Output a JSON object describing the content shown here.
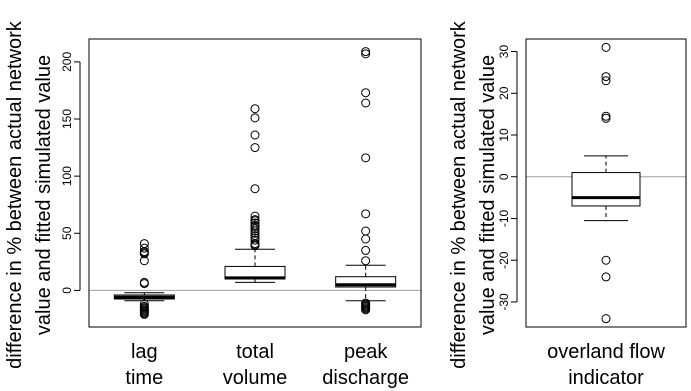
{
  "charts": {
    "chart_data": [
      {
        "type": "box",
        "ylabel_line1": "difference in % between actual network",
        "ylabel_line2": "value and fitted simulated value",
        "ylim": [
          -32,
          220
        ],
        "yticks": [
          0,
          50,
          100,
          150,
          200
        ],
        "reference_line_y": 0,
        "categories": [
          {
            "line1": "lag",
            "line2": "time"
          },
          {
            "line1": "total",
            "line2": "volume"
          },
          {
            "line1": "peak",
            "line2": "discharge"
          }
        ],
        "boxes": [
          {
            "whisker_low": -9,
            "q1": -7.5,
            "median": -6,
            "q3": -4,
            "whisker_high": -2,
            "outliers": [
              41,
              37,
              34,
              33,
              32,
              26,
              7,
              6,
              -12,
              -14,
              -15,
              -16,
              -17,
              -18,
              -19,
              -20,
              -21
            ]
          },
          {
            "whisker_low": 7,
            "q1": 10,
            "median": 11,
            "q3": 21,
            "whisker_high": 36,
            "outliers": [
              159,
              151,
              136,
              125,
              89,
              65,
              62,
              61,
              59,
              57,
              56,
              54,
              52,
              50,
              48,
              46,
              44,
              41,
              40,
              39
            ]
          },
          {
            "whisker_low": -9,
            "q1": 3,
            "median": 5,
            "q3": 12,
            "whisker_high": 22,
            "outliers": [
              209,
              207,
              173,
              164,
              116,
              67,
              52,
              45,
              35,
              26,
              -11,
              -12,
              -13,
              -14,
              -15,
              -16,
              -17
            ]
          }
        ]
      },
      {
        "type": "box",
        "ylabel_line1": "difference in % between actual network",
        "ylabel_line2": "value and fitted simulated value",
        "ylim": [
          -36,
          33
        ],
        "yticks": [
          -30,
          -20,
          -10,
          0,
          10,
          20,
          30
        ],
        "reference_line_y": 0,
        "categories": [
          {
            "line1": "overland flow",
            "line2": "indicator"
          }
        ],
        "boxes": [
          {
            "whisker_low": -10.5,
            "q1": -7,
            "median": -5,
            "q3": 1,
            "whisker_high": 5,
            "outliers": [
              31,
              24,
              23,
              14.5,
              14,
              -20,
              -24,
              -34
            ]
          }
        ]
      }
    ]
  }
}
